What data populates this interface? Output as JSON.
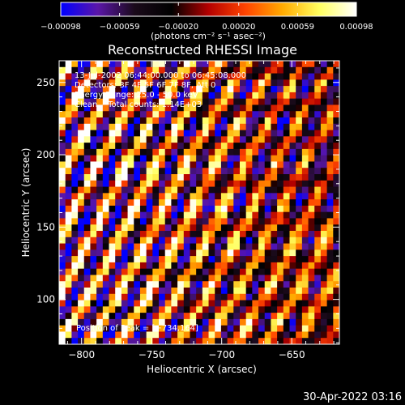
{
  "chart_data": {
    "type": "heatmap",
    "title": "Reconstructed RHESSI Image",
    "xlabel": "Heliocentric X (arcsec)",
    "ylabel": "Heliocentric Y (arcsec)",
    "xlim": [
      -816,
      -616
    ],
    "ylim": [
      69,
      265
    ],
    "x_ticks": [
      -800,
      -750,
      -700,
      -650
    ],
    "x_tick_labels": [
      "−800",
      "−750",
      "−700",
      "−650"
    ],
    "y_ticks": [
      100,
      150,
      200,
      250
    ],
    "y_tick_labels": [
      "100",
      "150",
      "200",
      "250"
    ],
    "colorbar": {
      "ticks": [
        -0.00098,
        -0.00059,
        -0.0002,
        0.0002,
        0.00059,
        0.00098
      ],
      "tick_labels": [
        "−0.00098",
        "−0.00059",
        "−0.00020",
        "0.00020",
        "0.00059",
        "0.00098"
      ],
      "range": [
        -0.00098,
        0.00098
      ],
      "unit_label": "(photons cm⁻² s⁻¹ asec⁻²)",
      "colors": [
        "#0000ff",
        "#5b16a8",
        "#1a0a1a",
        "#000000",
        "#b40000",
        "#ff4400",
        "#ffaa00",
        "#ffff60",
        "#ffffff"
      ]
    },
    "peak_marker": [
      -734,
      164
    ],
    "annotations": [
      "13-Jul-2002 06:44:00.000 to 06:45:08.000",
      "Detectors: 3F 4F 5F 6F 7F 8F, Att 0",
      "Energy Range: 25.0 - 50.0 keV",
      "Clean    Total counts: 1.14E+03"
    ],
    "footer_annotation": "Position of Peak = [−734,164]"
  },
  "timestamp": "30-Apr-2022 03:16"
}
